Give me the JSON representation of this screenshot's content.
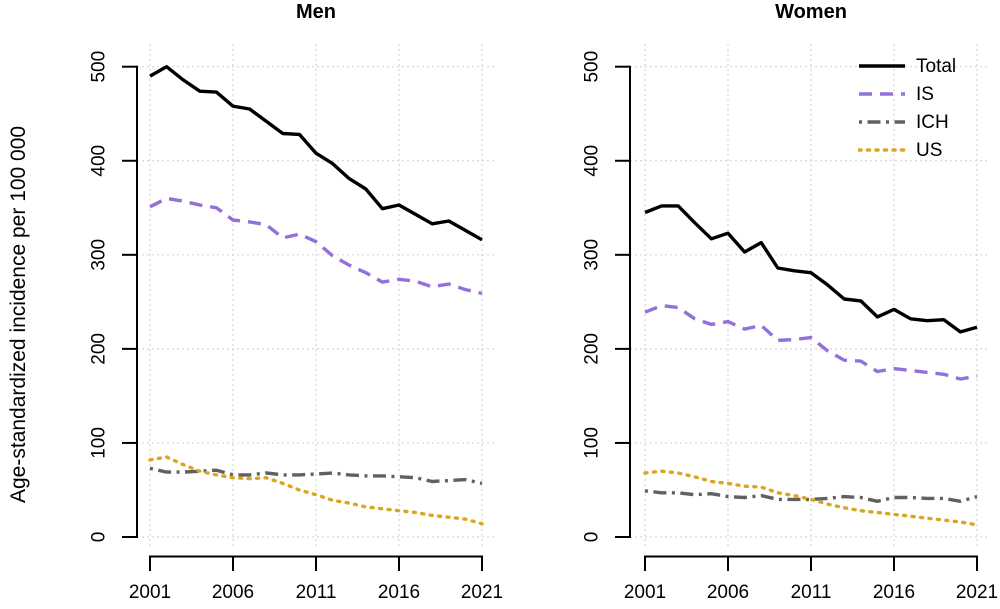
{
  "figure": {
    "y_axis_label": "Age-standardized incidence per 100 000"
  },
  "legend": {
    "position": "top-right-of-women-panel",
    "entries": [
      {
        "label": "Total",
        "color": "#000000",
        "dash": "solid"
      },
      {
        "label": "IS",
        "color": "#9370DB",
        "dash": "dashed"
      },
      {
        "label": "ICH",
        "color": "#606060",
        "dash": "dashdot"
      },
      {
        "label": "US",
        "color": "#DAA520",
        "dash": "dotted"
      }
    ]
  },
  "chart_data": [
    {
      "type": "line",
      "title": "Men",
      "xlabel": "",
      "ylabel": "Age-standardized incidence per 100 000",
      "grid": true,
      "ylim": [
        0,
        500
      ],
      "yticks": [
        0,
        100,
        200,
        300,
        400,
        500
      ],
      "xticks": [
        2001,
        2006,
        2011,
        2016,
        2021
      ],
      "x": [
        2001,
        2002,
        2003,
        2004,
        2005,
        2006,
        2007,
        2008,
        2009,
        2010,
        2011,
        2012,
        2013,
        2014,
        2015,
        2016,
        2017,
        2018,
        2019,
        2020,
        2021
      ],
      "series": [
        {
          "name": "Total",
          "color": "#000000",
          "dash": "solid",
          "values": [
            490,
            500,
            486,
            474,
            473,
            458,
            455,
            442,
            429,
            428,
            408,
            397,
            381,
            370,
            349,
            353,
            343,
            333,
            336,
            326,
            316
          ]
        },
        {
          "name": "IS",
          "color": "#9370DB",
          "dash": "dashed",
          "values": [
            351,
            360,
            357,
            353,
            350,
            337,
            335,
            332,
            318,
            322,
            314,
            299,
            289,
            281,
            271,
            274,
            272,
            266,
            269,
            263,
            259
          ]
        },
        {
          "name": "ICH",
          "color": "#606060",
          "dash": "dashdot",
          "values": [
            73,
            69,
            69,
            70,
            71,
            66,
            66,
            68,
            66,
            66,
            67,
            68,
            66,
            65,
            65,
            64,
            63,
            59,
            60,
            61,
            57
          ]
        },
        {
          "name": "US",
          "color": "#DAA520",
          "dash": "dotted",
          "values": [
            82,
            85,
            77,
            70,
            66,
            63,
            62,
            63,
            57,
            50,
            45,
            39,
            36,
            32,
            30,
            28,
            26,
            23,
            21,
            19,
            14
          ]
        }
      ]
    },
    {
      "type": "line",
      "title": "Women",
      "xlabel": "",
      "ylabel": "Age-standardized incidence per 100 000",
      "grid": true,
      "legend_position": "top-right",
      "ylim": [
        0,
        500
      ],
      "yticks": [
        0,
        100,
        200,
        300,
        400,
        500
      ],
      "xticks": [
        2001,
        2006,
        2011,
        2016,
        2021
      ],
      "x": [
        2001,
        2002,
        2003,
        2004,
        2005,
        2006,
        2007,
        2008,
        2009,
        2010,
        2011,
        2012,
        2013,
        2014,
        2015,
        2016,
        2017,
        2018,
        2019,
        2020,
        2021
      ],
      "series": [
        {
          "name": "Total",
          "color": "#000000",
          "dash": "solid",
          "values": [
            345,
            352,
            352,
            334,
            317,
            323,
            303,
            313,
            286,
            283,
            281,
            268,
            253,
            251,
            234,
            242,
            232,
            230,
            231,
            218,
            223
          ]
        },
        {
          "name": "IS",
          "color": "#9370DB",
          "dash": "dashed",
          "values": [
            239,
            246,
            244,
            232,
            226,
            229,
            221,
            225,
            209,
            210,
            212,
            198,
            188,
            187,
            176,
            179,
            177,
            175,
            173,
            168,
            171
          ]
        },
        {
          "name": "ICH",
          "color": "#606060",
          "dash": "dashdot",
          "values": [
            49,
            47,
            47,
            45,
            46,
            43,
            42,
            44,
            40,
            40,
            40,
            41,
            43,
            42,
            38,
            42,
            42,
            41,
            41,
            38,
            43
          ]
        },
        {
          "name": "US",
          "color": "#DAA520",
          "dash": "dotted",
          "values": [
            68,
            70,
            68,
            64,
            59,
            57,
            54,
            53,
            47,
            44,
            40,
            35,
            31,
            28,
            26,
            24,
            22,
            20,
            18,
            16,
            13
          ]
        }
      ]
    }
  ]
}
